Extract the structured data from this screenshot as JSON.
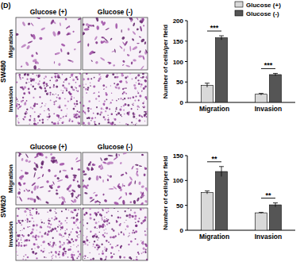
{
  "figure": {
    "label": "(D)",
    "columns": [
      "Glucose (+)",
      "Glucose (-)"
    ],
    "rows": [
      "Migration",
      "Invasion"
    ],
    "cell_lines": [
      "SW480",
      "SW620"
    ]
  },
  "chart_data": [
    {
      "type": "bar",
      "categories": [
        "Migration",
        "Invasion"
      ],
      "series": [
        {
          "name": "Glucose (+)",
          "color": "#d9d9d9",
          "values": [
            42,
            20
          ],
          "errors": [
            5,
            2
          ]
        },
        {
          "name": "Glucose (-)",
          "color": "#555555",
          "values": [
            158,
            68
          ],
          "errors": [
            5,
            3
          ]
        }
      ],
      "y_label": "Number of cells/per field",
      "ylim": [
        0,
        200
      ],
      "yticks": [
        0,
        50,
        100,
        150,
        200
      ],
      "significance": [
        "***",
        "***"
      ],
      "legend": "top-right"
    },
    {
      "type": "bar",
      "categories": [
        "Migration",
        "Invasion"
      ],
      "series": [
        {
          "name": "Glucose (+)",
          "color": "#d9d9d9",
          "values": [
            76,
            35
          ],
          "errors": [
            3,
            1
          ]
        },
        {
          "name": "Glucose (-)",
          "color": "#555555",
          "values": [
            118,
            51
          ],
          "errors": [
            10,
            4
          ]
        }
      ],
      "y_label": "Number of cells/per field",
      "ylim": [
        0,
        150
      ],
      "yticks": [
        0,
        50,
        100,
        150
      ],
      "significance": [
        "**",
        "**"
      ]
    }
  ]
}
